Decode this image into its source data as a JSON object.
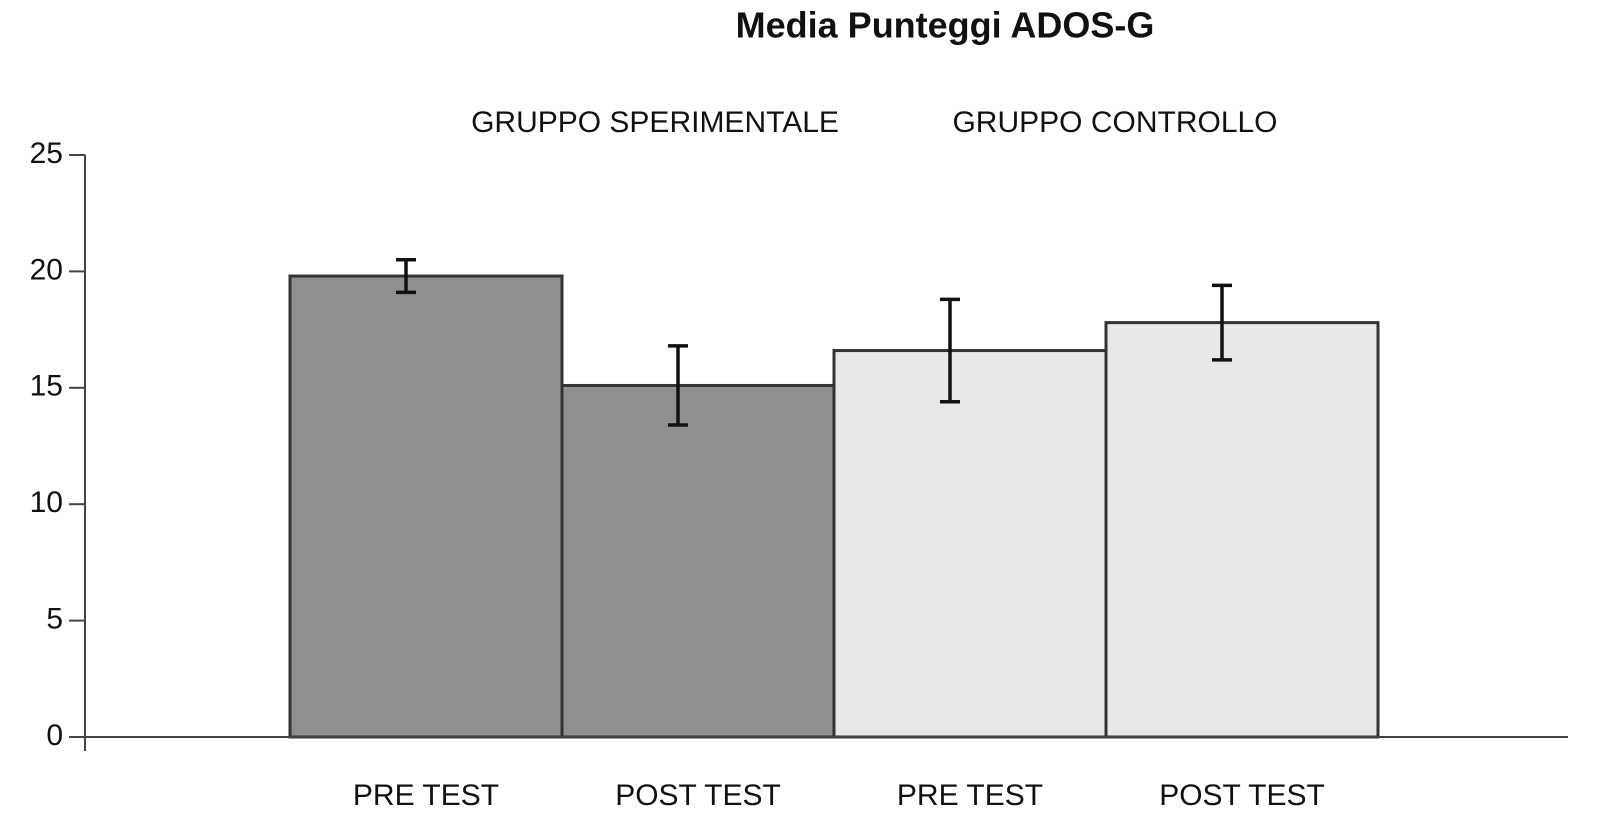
{
  "chart_data": {
    "type": "bar",
    "title": "Media Punteggi ADOS-G",
    "group_labels": [
      "GRUPPO SPERIMENTALE",
      "GRUPPO CONTROLLO"
    ],
    "categories": [
      "PRE TEST",
      "POST TEST",
      "PRE TEST",
      "POST TEST"
    ],
    "values": [
      19.8,
      15.1,
      16.6,
      17.8
    ],
    "errors": [
      0.7,
      1.7,
      2.2,
      1.6
    ],
    "colors": [
      "#8f8f8f",
      "#8f8f8f",
      "#e8e8e8",
      "#e8e8e8"
    ],
    "ylim": [
      0,
      25
    ],
    "yticks": [
      0,
      5,
      10,
      15,
      20,
      25
    ],
    "grid": false
  }
}
